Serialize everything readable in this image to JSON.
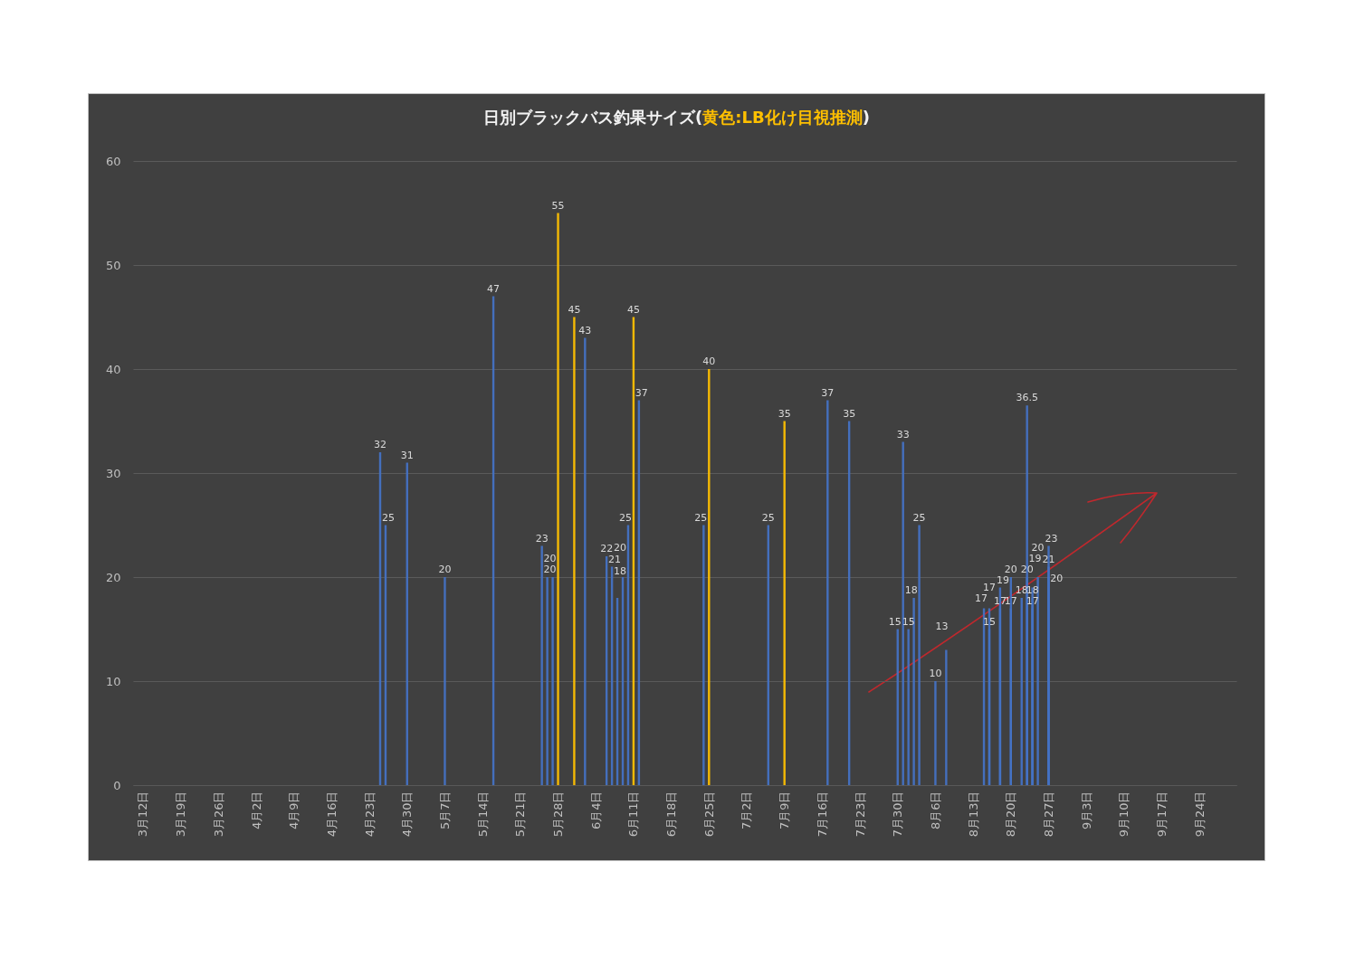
{
  "chart_data": {
    "type": "bar",
    "title": "日別ブラックバス釣果サイズ(黄色:LB化け目視推測)",
    "series": [
      {
        "x": [
          "--04-25",
          "--04-26",
          "--04-30",
          "--05-07",
          "--05-16",
          "--05-25",
          "--05-26",
          "--05-27",
          "--05-28",
          "--05-31",
          "--06-02",
          "--06-06",
          "--06-07",
          "--06-08",
          "--06-09",
          "--06-10",
          "--06-11",
          "--06-12",
          "--06-24",
          "--06-25",
          "--07-06",
          "--07-09",
          "--07-17",
          "--07-21",
          "--07-30",
          "--07-31",
          "--08-01",
          "--08-02",
          "--08-03",
          "--08-06",
          "--08-08",
          "--08-15",
          "--08-16",
          "--08-18",
          "--08-20",
          "--08-22",
          "--08-23",
          "--08-24",
          "--08-25",
          "--08-27"
        ],
        "values": [
          32,
          25,
          31,
          20,
          47,
          23,
          20,
          20,
          55,
          45,
          43,
          22,
          21,
          18,
          20,
          25,
          45,
          37,
          25,
          40,
          25,
          35,
          37,
          35,
          15,
          33,
          15,
          18,
          25,
          10,
          13,
          17,
          17,
          19,
          20,
          18,
          36.5,
          19,
          20,
          23
        ],
        "colors": [
          "#4472c4",
          "#4472c4",
          "#4472c4",
          "#4472c4",
          "#4472c4",
          "#4472c4",
          "#4472c4",
          "#4472c4",
          "#ffc000",
          "#ffc000",
          "#4472c4",
          "#4472c4",
          "#4472c4",
          "#4472c4",
          "#4472c4",
          "#4472c4",
          "#ffc000",
          "#4472c4",
          "#4472c4",
          "#ffc000",
          "#4472c4",
          "#ffc000",
          "#4472c4",
          "#4472c4",
          "#4472c4",
          "#4472c4",
          "#4472c4",
          "#4472c4",
          "#4472c4",
          "#4472c4",
          "#4472c4",
          "#4472c4",
          "#4472c4",
          "#4472c4",
          "#4472c4",
          "#4472c4",
          "#4472c4",
          "#4472c4",
          "#4472c4",
          "#4472c4"
        ]
      },
      {
        "x": [
          "--08-16",
          "--08-18",
          "--08-20",
          "--08-23",
          "--08-24",
          "--08-27"
        ],
        "values": [
          15,
          17,
          17,
          20,
          18,
          21
        ],
        "color": "#4472c4"
      },
      {
        "x": [
          "--08-24",
          "--08-27"
        ],
        "values": [
          17,
          20
        ],
        "color": "#4472c4"
      }
    ],
    "data_labels": true,
    "xlim": [
      "--03-11",
      "--09-30"
    ],
    "xticks": [
      {
        "value": "--03-12",
        "label": "3月12日"
      },
      {
        "value": "--03-19",
        "label": "3月19日"
      },
      {
        "value": "--03-26",
        "label": "3月26日"
      },
      {
        "value": "--04-02",
        "label": "4月2日"
      },
      {
        "value": "--04-09",
        "label": "4月9日"
      },
      {
        "value": "--04-16",
        "label": "4月16日"
      },
      {
        "value": "--04-23",
        "label": "4月23日"
      },
      {
        "value": "--04-30",
        "label": "4月30日"
      },
      {
        "value": "--05-07",
        "label": "5月7日"
      },
      {
        "value": "--05-14",
        "label": "5月14日"
      },
      {
        "value": "--05-21",
        "label": "5月21日"
      },
      {
        "value": "--05-28",
        "label": "5月28日"
      },
      {
        "value": "--06-04",
        "label": "6月4日"
      },
      {
        "value": "--06-11",
        "label": "6月11日"
      },
      {
        "value": "--06-18",
        "label": "6月18日"
      },
      {
        "value": "--06-25",
        "label": "6月25日"
      },
      {
        "value": "--07-02",
        "label": "7月2日"
      },
      {
        "value": "--07-09",
        "label": "7月9日"
      },
      {
        "value": "--07-16",
        "label": "7月16日"
      },
      {
        "value": "--07-23",
        "label": "7月23日"
      },
      {
        "value": "--07-30",
        "label": "7月30日"
      },
      {
        "value": "--08-06",
        "label": "8月6日"
      },
      {
        "value": "--08-13",
        "label": "8月13日"
      },
      {
        "value": "--08-20",
        "label": "8月20日"
      },
      {
        "value": "--08-27",
        "label": "8月27日"
      },
      {
        "value": "--09-03",
        "label": "9月3日"
      },
      {
        "value": "--09-10",
        "label": "9月10日"
      },
      {
        "value": "--09-17",
        "label": "9月17日"
      },
      {
        "value": "--09-24",
        "label": "9月24日"
      }
    ],
    "ylim": [
      0,
      60
    ],
    "yticks": [
      0,
      10,
      20,
      30,
      40,
      50,
      60
    ],
    "grid": "y"
  }
}
